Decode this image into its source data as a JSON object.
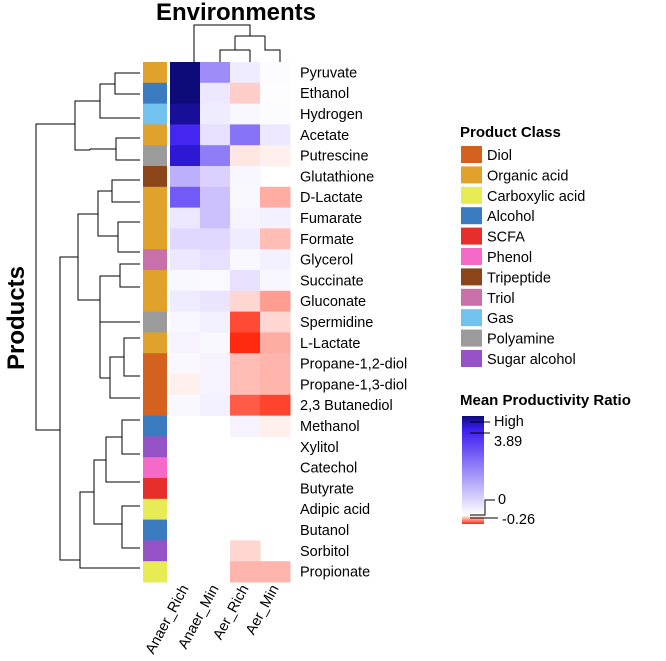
{
  "chart_data": {
    "type": "heatmap",
    "title": "Environments",
    "ylabel": "Products",
    "columns": [
      "Anaer_Rich",
      "Anaer_Min",
      "Aer_Rich",
      "Aer_Min"
    ],
    "rows": [
      {
        "label": "Pyruvate",
        "class": "Organic acid",
        "values": [
          3.89,
          1.4,
          0.25,
          0.05
        ]
      },
      {
        "label": "Ethanol",
        "class": "Alcohol",
        "values": [
          3.89,
          0.3,
          -0.06,
          0.03
        ]
      },
      {
        "label": "Hydrogen",
        "class": "Gas",
        "values": [
          3.6,
          0.25,
          0.1,
          0.05
        ]
      },
      {
        "label": "Acetate",
        "class": "Organic acid",
        "values": [
          2.6,
          0.4,
          1.7,
          0.3
        ]
      },
      {
        "label": "Putrescine",
        "class": "Polyamine",
        "values": [
          3.0,
          1.6,
          -0.03,
          -0.02
        ]
      },
      {
        "label": "Glutathione",
        "class": "Tripeptide",
        "values": [
          1.0,
          0.6,
          0.12,
          null
        ]
      },
      {
        "label": "D-Lactate",
        "class": "Organic acid",
        "values": [
          2.0,
          0.8,
          0.1,
          -0.1
        ]
      },
      {
        "label": "Fumarate",
        "class": "Organic acid",
        "values": [
          0.3,
          0.8,
          0.15,
          0.2
        ]
      },
      {
        "label": "Formate",
        "class": "Organic acid",
        "values": [
          0.5,
          0.5,
          0.25,
          -0.08
        ]
      },
      {
        "label": "Glycerol",
        "class": "Triol",
        "values": [
          0.3,
          0.4,
          0.1,
          0.2
        ]
      },
      {
        "label": "Succinate",
        "class": "Organic acid",
        "values": [
          0.1,
          0.08,
          0.4,
          0.12
        ]
      },
      {
        "label": "Gluconate",
        "class": "Organic acid",
        "values": [
          0.25,
          0.35,
          -0.05,
          -0.12
        ]
      },
      {
        "label": "Spermidine",
        "class": "Polyamine",
        "values": [
          0.12,
          0.2,
          -0.22,
          -0.05
        ]
      },
      {
        "label": "L-Lactate",
        "class": "Organic acid",
        "values": [
          0.15,
          0.1,
          -0.26,
          -0.1
        ]
      },
      {
        "label": "Propane-1,2-diol",
        "class": "Diol",
        "values": [
          0.1,
          0.15,
          -0.08,
          -0.09
        ]
      },
      {
        "label": "Propane-1,3-diol",
        "class": "Diol",
        "values": [
          -0.02,
          0.15,
          -0.08,
          -0.09
        ]
      },
      {
        "label": "2,3 Butanediol",
        "class": "Diol",
        "values": [
          0.1,
          0.2,
          -0.2,
          -0.23
        ]
      },
      {
        "label": "Methanol",
        "class": "Alcohol",
        "values": [
          null,
          null,
          0.15,
          -0.02
        ]
      },
      {
        "label": "Xylitol",
        "class": "Sugar alcohol",
        "values": [
          null,
          null,
          null,
          null
        ]
      },
      {
        "label": "Catechol",
        "class": "Phenol",
        "values": [
          null,
          null,
          null,
          null
        ]
      },
      {
        "label": "Butyrate",
        "class": "SCFA",
        "values": [
          null,
          null,
          null,
          null
        ]
      },
      {
        "label": "Adipic acid",
        "class": "Carboxylic acid",
        "values": [
          null,
          null,
          null,
          null
        ]
      },
      {
        "label": "Butanol",
        "class": "Alcohol",
        "values": [
          null,
          null,
          null,
          null
        ]
      },
      {
        "label": "Sorbitol",
        "class": "Sugar alcohol",
        "values": [
          null,
          null,
          -0.05,
          null
        ]
      },
      {
        "label": "Propionate",
        "class": "Carboxylic acid",
        "values": [
          null,
          null,
          -0.09,
          -0.09
        ]
      }
    ],
    "class_legend": {
      "title": "Product Class",
      "items": [
        {
          "name": "Diol",
          "color": "#d4621e"
        },
        {
          "name": "Organic acid",
          "color": "#e0a22a"
        },
        {
          "name": "Carboxylic acid",
          "color": "#e8ec54"
        },
        {
          "name": "Alcohol",
          "color": "#3a7cbf"
        },
        {
          "name": "SCFA",
          "color": "#e72e2a"
        },
        {
          "name": "Phenol",
          "color": "#f56ac8"
        },
        {
          "name": "Tripeptide",
          "color": "#8b4519"
        },
        {
          "name": "Triol",
          "color": "#c96faa"
        },
        {
          "name": "Gas",
          "color": "#72c2ef"
        },
        {
          "name": "Polyamine",
          "color": "#9b9b9b"
        },
        {
          "name": "Sugar alcohol",
          "color": "#9653c8"
        }
      ]
    },
    "color_scale": {
      "title": "Mean Productivity Ratio",
      "high_label": "High",
      "max_value": 3.89,
      "max_label": "3.89",
      "zero_label": "0",
      "min_value": -0.26,
      "min_label": "-0.26",
      "high_color": "#0d0a7a",
      "mid_high_color": "#3a1cf0",
      "zero_color": "#ffffff",
      "low_color": "#ff2a10"
    }
  }
}
